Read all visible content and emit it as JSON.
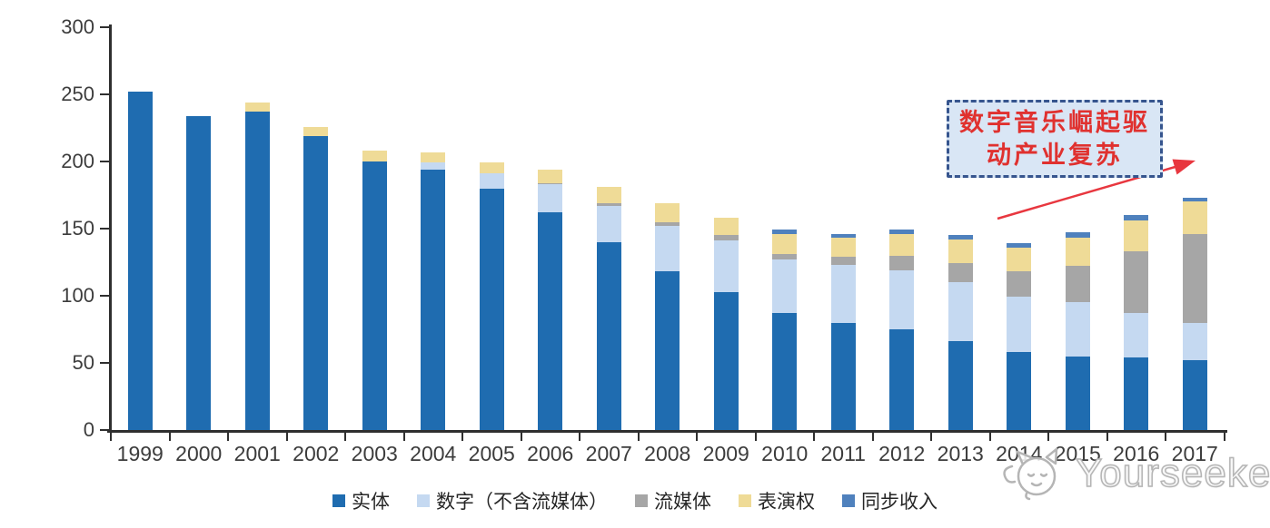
{
  "chart_data": {
    "type": "bar",
    "stacked": true,
    "categories": [
      "1999",
      "2000",
      "2001",
      "2002",
      "2003",
      "2004",
      "2005",
      "2006",
      "2007",
      "2008",
      "2009",
      "2010",
      "2011",
      "2012",
      "2013",
      "2014",
      "2015",
      "2016",
      "2017"
    ],
    "series": [
      {
        "key": "physical",
        "name": "实体",
        "color": "#1F6CB0",
        "values": [
          252,
          234,
          237,
          219,
          200,
          194,
          180,
          162,
          140,
          118,
          103,
          87,
          80,
          75,
          66,
          58,
          55,
          54,
          52
        ]
      },
      {
        "key": "digital-excl-streaming",
        "name": "数字（不含流媒体）",
        "color": "#C5D9F1",
        "values": [
          0,
          0,
          0,
          0,
          0,
          5,
          11,
          21,
          27,
          34,
          38,
          40,
          43,
          44,
          44,
          41,
          40,
          33,
          28
        ]
      },
      {
        "key": "streaming",
        "name": "流媒体",
        "color": "#A6A6A6",
        "values": [
          0,
          0,
          0,
          0,
          0,
          0,
          0,
          1,
          2,
          3,
          4,
          4,
          6,
          11,
          14,
          19,
          27,
          46,
          66
        ]
      },
      {
        "key": "performance-rights",
        "name": "表演权",
        "color": "#EFDB97",
        "values": [
          0,
          0,
          7,
          7,
          8,
          8,
          8,
          10,
          12,
          14,
          13,
          15,
          14,
          16,
          18,
          18,
          21,
          23,
          24
        ]
      },
      {
        "key": "sync-revenue",
        "name": "同步收入",
        "color": "#4F81BD",
        "values": [
          0,
          0,
          0,
          0,
          0,
          0,
          0,
          0,
          0,
          0,
          0,
          3,
          3,
          3,
          3,
          3,
          4,
          4,
          3
        ]
      }
    ],
    "ylim": [
      0,
      300
    ],
    "yticks": [
      0,
      50,
      100,
      150,
      200,
      250,
      300
    ],
    "grid": false,
    "legend_position": "bottom",
    "axis_color": "#2f2f2f",
    "tick_label_color": "#3c3c3c"
  },
  "annotation": {
    "line1": "数字音乐崛起驱",
    "line2": "动产业复苏",
    "text_color": "#E0312F",
    "border_color": "#36558E",
    "fill_color": "#D9E6F5",
    "arrow_color": "#E8373F"
  },
  "watermark": {
    "text": "Yourseeker"
  }
}
